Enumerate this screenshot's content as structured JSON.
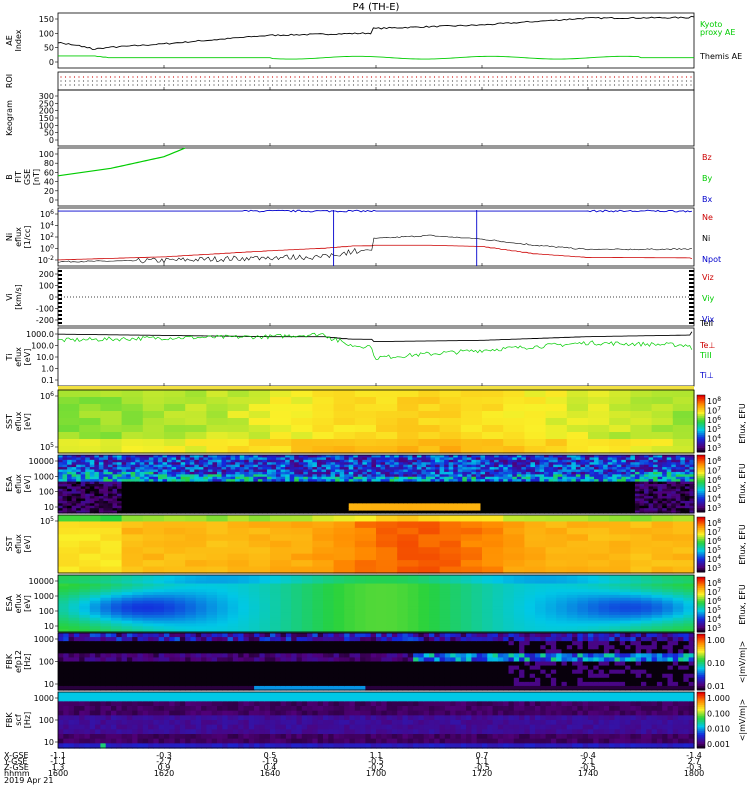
{
  "title": "P4 (TH-E)",
  "footer": {
    "row_labels": [
      "X-GSE",
      "Y-GSE",
      "Z-GSE",
      "hhmm",
      "2019 Apr 21"
    ],
    "columns": [
      {
        "x": "-1.1",
        "y": "-1.1",
        "z": "1.3",
        "hhmm": "1600"
      },
      {
        "x": "-0.3",
        "y": "-2.7",
        "z": "0.9",
        "hhmm": "1620"
      },
      {
        "x": "0.5",
        "y": "-1.9",
        "z": "0.4",
        "hhmm": "1640"
      },
      {
        "x": "1.1",
        "y": "-0.5",
        "z": "-0.2",
        "hhmm": "1700"
      },
      {
        "x": "0.7",
        "y": "1.1",
        "z": "-0.5",
        "hhmm": "1720"
      },
      {
        "x": "-0.4",
        "y": "2.1",
        "z": "-0.5",
        "hhmm": "1740"
      },
      {
        "x": "-1.4",
        "y": "2.7",
        "z": "-0.3",
        "hhmm": "1800"
      }
    ]
  },
  "colorbars": [
    {
      "label": "Eflux, EFU",
      "ticks": [
        "10^8",
        "10^7",
        "10^6",
        "10^5",
        "10^4",
        "10^3"
      ]
    },
    {
      "label": "Eflux, EFU",
      "ticks": [
        "10^8",
        "10^7",
        "10^6",
        "10^5",
        "10^4",
        "10^3"
      ]
    },
    {
      "label": "Eflux, EFU",
      "ticks": [
        "10^8",
        "10^7",
        "10^6",
        "10^5",
        "10^4",
        "10^3"
      ]
    },
    {
      "label": "Eflux, EFU",
      "ticks": [
        "10^8",
        "10^7",
        "10^6",
        "10^5",
        "10^4",
        "10^3"
      ]
    },
    {
      "label": "<|mV/m|>",
      "ticks": [
        "1.00",
        "0.10",
        "0.01"
      ]
    },
    {
      "label": "<|mV/m|>",
      "ticks": [
        "1.000",
        "0.100",
        "0.010",
        "0.001"
      ]
    }
  ],
  "chart_data": [
    {
      "type": "line",
      "panel": "AE Index",
      "ylabel": "AE Index",
      "yticks": [
        "150",
        "100",
        "50",
        "0"
      ],
      "ylim": [
        0,
        160
      ],
      "series": [
        {
          "name": "Kyoto proxy AE",
          "color": "#00cc00"
        },
        {
          "name": "Themis AE",
          "color": "#000000"
        }
      ],
      "x_hhmm": [
        1600,
        1604,
        1607,
        1610,
        1620,
        1640,
        1700,
        1720,
        1740,
        1800
      ],
      "themis_ae": [
        75,
        65,
        55,
        60,
        70,
        95,
        115,
        125,
        145,
        150
      ],
      "kyoto_ae": [
        35,
        35,
        35,
        30,
        30,
        30,
        30,
        30,
        30,
        30
      ]
    },
    {
      "type": "table",
      "panel": "ROI",
      "ylabel": "ROI"
    },
    {
      "type": "line",
      "panel": "Keogram",
      "ylabel": "Keogram",
      "yticks": [
        "300",
        "250",
        "200",
        "150",
        "100",
        "50",
        "0"
      ],
      "ylim": [
        0,
        300
      ]
    },
    {
      "type": "line",
      "panel": "B FIT GSE [nT]",
      "ylabel": "B FIT GSE [nT]",
      "yticks": [
        "100",
        "80",
        "60",
        "40",
        "20",
        "0"
      ],
      "ylim": [
        0,
        100
      ],
      "series": [
        {
          "name": "Bz",
          "color": "#cc0000"
        },
        {
          "name": "By",
          "color": "#00cc00"
        },
        {
          "name": "Bx",
          "color": "#0000cc"
        }
      ],
      "x_hhmm": [
        1600,
        1610,
        1620,
        1624
      ],
      "by": [
        52,
        65,
        85,
        100
      ]
    },
    {
      "type": "line",
      "panel": "Ni eflux [1/cc]",
      "ylabel": "Ni eflux [1/cc]",
      "yticks": [
        "10^6",
        "10^4",
        "10^2",
        "10^0",
        "10^-2"
      ],
      "ylim": [
        -3,
        6.5
      ],
      "scale": "log",
      "series": [
        {
          "name": "Ne",
          "color": "#cc0000"
        },
        {
          "name": "Ni",
          "color": "#000000"
        },
        {
          "name": "Npot",
          "color": "#0000cc"
        }
      ],
      "x_hhmm": [
        1600,
        1620,
        1640,
        1650,
        1656,
        1700,
        1710,
        1720,
        1730,
        1740,
        1800
      ],
      "log_ni": [
        -2.3,
        -2.1,
        -1.6,
        -1.5,
        -0.5,
        1.5,
        2,
        1.4,
        0.4,
        -0.3,
        -0.1
      ],
      "log_ne": [
        -2.0,
        -1.5,
        -0.5,
        -0.1,
        0.3,
        0.4,
        0.4,
        0.2,
        -1.0,
        -1.6,
        -1.8
      ],
      "log_npot": [
        6,
        6,
        6,
        6,
        6,
        6,
        6,
        6,
        6,
        6,
        6
      ]
    },
    {
      "type": "line",
      "panel": "Vi [km/s]",
      "ylabel": "Vi [km/s]",
      "yticks": [
        "200",
        "100",
        "0",
        "-100",
        "-200"
      ],
      "ylim": [
        -280,
        280
      ],
      "series": [
        {
          "name": "Viz",
          "color": "#cc0000"
        },
        {
          "name": "Viy",
          "color": "#00cc00"
        },
        {
          "name": "Vix",
          "color": "#0000cc"
        }
      ]
    },
    {
      "type": "line",
      "panel": "Ti eflux [eV]",
      "ylabel": "Ti eflux [eV]",
      "yticks": [
        "1000.0",
        "100.0",
        "10.0",
        "1.0",
        "0.1"
      ],
      "ylim": [
        -1.3,
        3.4
      ],
      "scale": "log",
      "series": [
        {
          "name": "TeII",
          "color": "#000000"
        },
        {
          "name": "Te⊥",
          "color": "#cc0000"
        },
        {
          "name": "TiII",
          "color": "#00cc00"
        },
        {
          "name": "Ti⊥",
          "color": "#0000cc"
        }
      ],
      "x_hhmm": [
        1600,
        1620,
        1640,
        1650,
        1655,
        1700,
        1720,
        1740,
        1800
      ],
      "log_teii": [
        2.9,
        2.8,
        2.7,
        2.7,
        2.5,
        2.3,
        2.4,
        2.7,
        3.1
      ],
      "log_tiii": [
        2.4,
        2.6,
        2.7,
        2.9,
        2.0,
        1.0,
        1.6,
        2.2,
        1.6
      ]
    },
    {
      "type": "heatmap",
      "panel": "SST eflux [eV]",
      "ylabel": "SST eflux [eV]",
      "yticks": [
        "10^6",
        "10^5"
      ]
    },
    {
      "type": "heatmap",
      "panel": "ESA eflux [eV]",
      "ylabel": "ESA eflux [eV]",
      "yticks": [
        "10000",
        "1000",
        "100",
        "10"
      ]
    },
    {
      "type": "heatmap",
      "panel": "SST eflux [eV] (2)",
      "ylabel": "SST eflux [eV]",
      "yticks": [
        "10^5"
      ]
    },
    {
      "type": "heatmap",
      "panel": "ESA eflux [eV] (2)",
      "ylabel": "ESA eflux [eV]",
      "yticks": [
        "10000",
        "1000",
        "100",
        "10"
      ]
    },
    {
      "type": "heatmap",
      "panel": "FBK efp12 [Hz]",
      "ylabel": "FBK efp12 [Hz]",
      "yticks": [
        "1000",
        "100",
        "10"
      ]
    },
    {
      "type": "heatmap",
      "panel": "FBK scf [Hz]",
      "ylabel": "FBK scf [Hz]",
      "yticks": [
        "1000",
        "100",
        "10"
      ]
    }
  ]
}
